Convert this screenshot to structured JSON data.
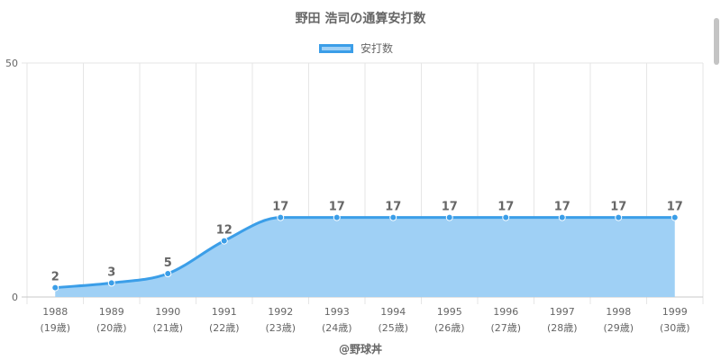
{
  "chart_data": {
    "type": "area",
    "title": "野田 浩司の通算安打数",
    "legend": {
      "label": "安打数",
      "position": "top"
    },
    "categories": [
      "1988",
      "1989",
      "1990",
      "1991",
      "1992",
      "1993",
      "1994",
      "1995",
      "1996",
      "1997",
      "1998",
      "1999"
    ],
    "ages": [
      "(19歳)",
      "(20歳)",
      "(21歳)",
      "(22歳)",
      "(23歳)",
      "(24歳)",
      "(25歳)",
      "(26歳)",
      "(27歳)",
      "(28歳)",
      "(29歳)",
      "(30歳)"
    ],
    "series": [
      {
        "name": "安打数",
        "values": [
          2,
          3,
          5,
          12,
          17,
          17,
          17,
          17,
          17,
          17,
          17,
          17
        ]
      }
    ],
    "ylim": [
      0,
      50
    ],
    "yticks": [
      "0",
      "50"
    ],
    "grid": true,
    "colors": {
      "line": "#3b9ee8",
      "fill": "#9fd0f5"
    }
  },
  "footer": "@野球丼"
}
